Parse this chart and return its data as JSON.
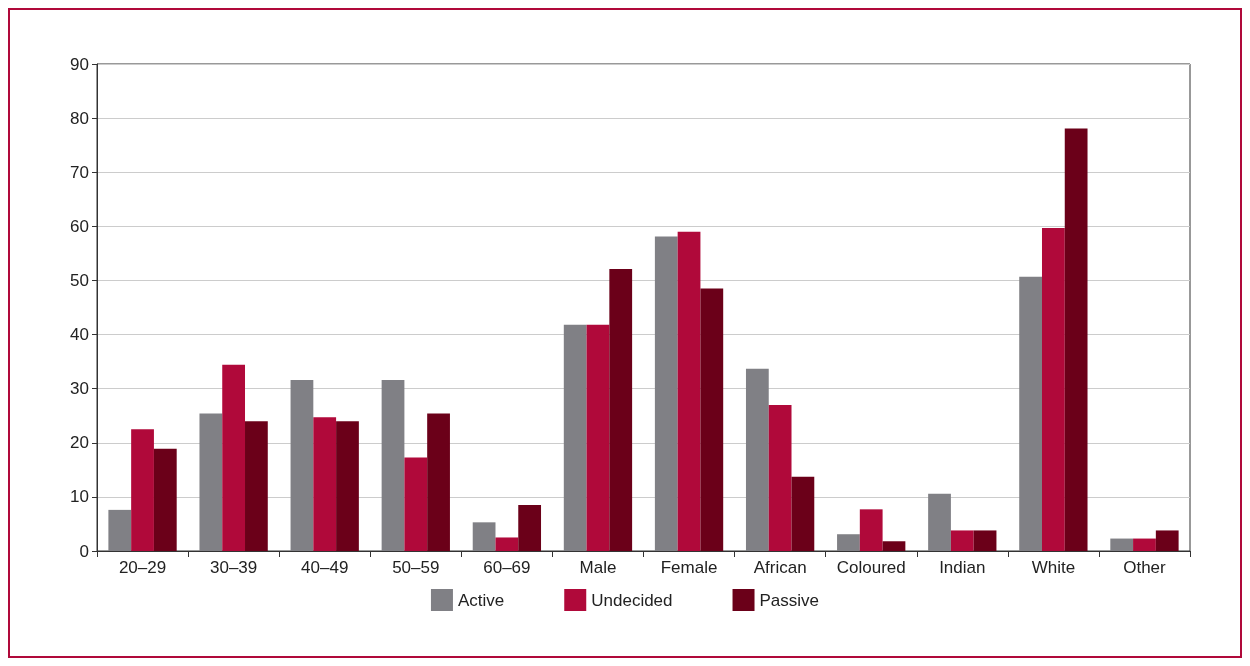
{
  "chart_data": {
    "type": "bar",
    "categories": [
      "20–29",
      "30–39",
      "40–49",
      "50–59",
      "60–69",
      "Male",
      "Female",
      "African",
      "Coloured",
      "Indian",
      "White",
      "Other"
    ],
    "series": [
      {
        "name": "Active",
        "color": "#808085",
        "values": [
          7.6,
          25.4,
          31.6,
          31.6,
          5.3,
          41.8,
          58.1,
          33.7,
          3.1,
          10.6,
          50.7,
          2.3
        ]
      },
      {
        "name": "Undecided",
        "color": "#b0093a",
        "values": [
          22.5,
          34.4,
          24.7,
          17.3,
          2.5,
          41.8,
          59,
          27,
          7.7,
          3.8,
          59.7,
          2.3
        ]
      },
      {
        "name": "Passive",
        "color": "#6b0019",
        "values": [
          18.9,
          24,
          24,
          25.4,
          8.5,
          52.1,
          48.5,
          13.7,
          1.8,
          3.8,
          78.1,
          3.8
        ]
      }
    ],
    "ylim": [
      0,
      90
    ],
    "yticks": [
      0,
      10,
      20,
      30,
      40,
      50,
      60,
      70,
      80,
      90
    ],
    "grid": "y",
    "legend": "bottom"
  }
}
